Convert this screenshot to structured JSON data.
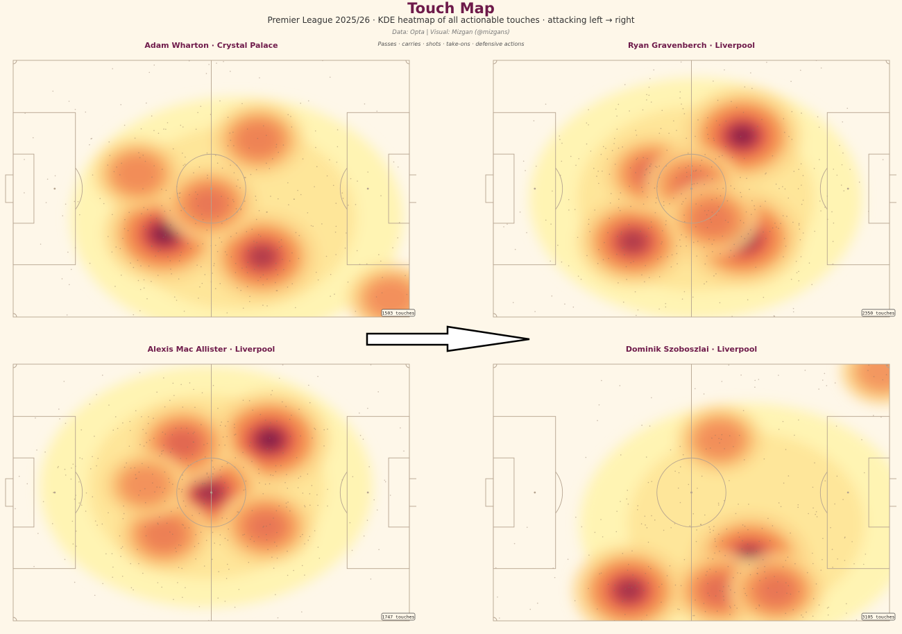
{
  "header": {
    "title": "Touch Map",
    "subtitle": "Premier League 2025/26  ·  KDE heatmap of all actionable touches  ·  attacking left → right",
    "credit": "Data: Opta | Visual: Mizgan (@mizgans)",
    "note": "Passes · carries · shots · take-ons · defensive actions"
  },
  "colors": {
    "background": "#fef7e9",
    "title": "#6e1a4a",
    "pitch_line": "#b5a38f",
    "heat_low": "#fff3b0",
    "heat_mid": "#f4934f",
    "heat_high": "#b52a4a",
    "heat_peak": "#6e1a4a"
  },
  "chart_data": [
    {
      "type": "heatmap",
      "title": "Adam Wharton  ·  Crystal Palace",
      "badge": "1503 touches",
      "pitch": {
        "length": 105,
        "width": 68
      },
      "hotspots": [
        {
          "x": 40,
          "y": 46,
          "intensity": 1.0
        },
        {
          "x": 66,
          "y": 52,
          "intensity": 0.8
        },
        {
          "x": 52,
          "y": 38,
          "intensity": 0.45
        },
        {
          "x": 33,
          "y": 30,
          "intensity": 0.3
        },
        {
          "x": 65,
          "y": 21,
          "intensity": 0.38
        },
        {
          "x": 100,
          "y": 63,
          "intensity": 0.25
        }
      ]
    },
    {
      "type": "heatmap",
      "title": "Ryan Gravenberch  ·  Liverpool",
      "badge": "2350 touches",
      "pitch": {
        "length": 105,
        "width": 68
      },
      "hotspots": [
        {
          "x": 66,
          "y": 20,
          "intensity": 0.95
        },
        {
          "x": 66,
          "y": 47,
          "intensity": 1.0
        },
        {
          "x": 37,
          "y": 48,
          "intensity": 0.8
        },
        {
          "x": 42,
          "y": 30,
          "intensity": 0.5
        },
        {
          "x": 53,
          "y": 33,
          "intensity": 0.45
        },
        {
          "x": 58,
          "y": 42,
          "intensity": 0.4
        }
      ]
    },
    {
      "type": "heatmap",
      "title": "Alexis Mac Allister  ·  Liverpool",
      "badge": "1747 touches",
      "pitch": {
        "length": 105,
        "width": 68
      },
      "hotspots": [
        {
          "x": 68,
          "y": 20,
          "intensity": 1.0
        },
        {
          "x": 52,
          "y": 34,
          "intensity": 0.85
        },
        {
          "x": 45,
          "y": 21,
          "intensity": 0.55
        },
        {
          "x": 67,
          "y": 43,
          "intensity": 0.45
        },
        {
          "x": 40,
          "y": 45,
          "intensity": 0.4
        },
        {
          "x": 35,
          "y": 32,
          "intensity": 0.2
        }
      ]
    },
    {
      "type": "heatmap",
      "title": "Dominik Szoboszlai  ·  Liverpool",
      "badge": "3105 touches",
      "pitch": {
        "length": 105,
        "width": 68
      },
      "hotspots": [
        {
          "x": 68,
          "y": 52,
          "intensity": 1.0
        },
        {
          "x": 36,
          "y": 60,
          "intensity": 0.85
        },
        {
          "x": 60,
          "y": 60,
          "intensity": 0.5
        },
        {
          "x": 75,
          "y": 60,
          "intensity": 0.45
        },
        {
          "x": 60,
          "y": 20,
          "intensity": 0.25
        },
        {
          "x": 103,
          "y": 2,
          "intensity": 0.15
        }
      ]
    }
  ]
}
